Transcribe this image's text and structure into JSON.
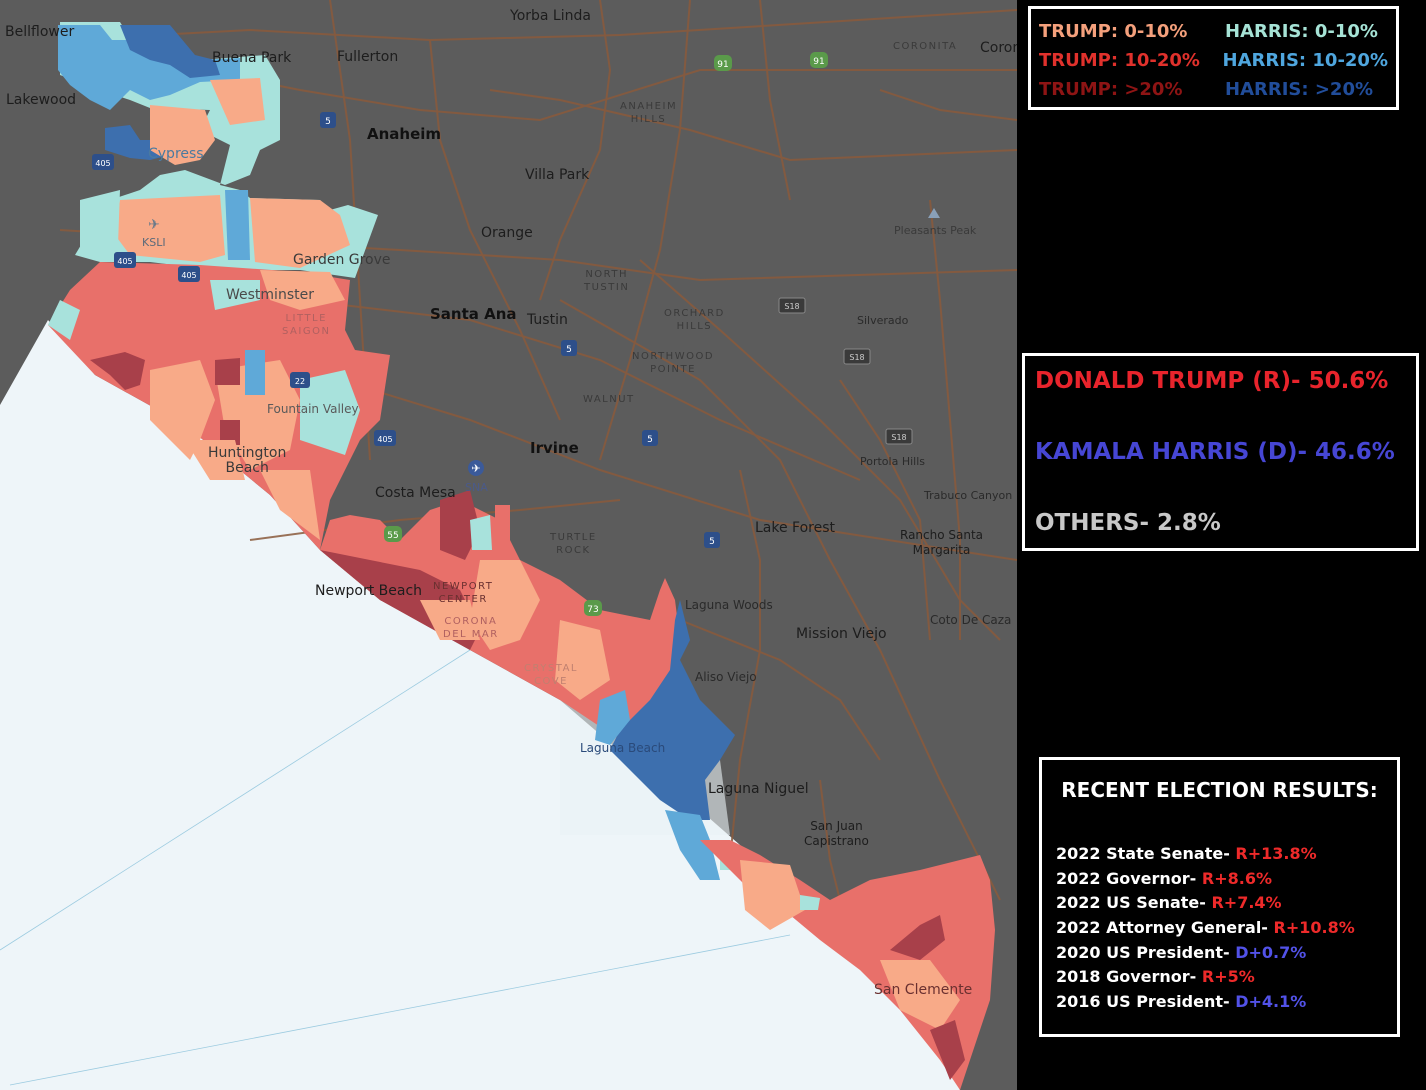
{
  "legend": {
    "trump_0_10": "TRUMP: 0-10%",
    "trump_10_20": "TRUMP: 10-20%",
    "trump_20": "TRUMP: >20%",
    "harris_0_10": "HARRIS: 0-10%",
    "harris_10_20": "HARRIS: 10-20%",
    "harris_20": "HARRIS: >20%"
  },
  "results": {
    "trump": "DONALD TRUMP (R)- 50.6%",
    "harris": "KAMALA HARRIS (D)- 46.6%",
    "others": "OTHERS- 2.8%"
  },
  "recent": {
    "title": "RECENT ELECTION RESULTS:",
    "items": [
      {
        "label": "2022 State Senate- ",
        "margin": "R+13.8%",
        "party": "R"
      },
      {
        "label": "2022 Governor- ",
        "margin": "R+8.6%",
        "party": "R"
      },
      {
        "label": "2022 US Senate- ",
        "margin": "R+7.4%",
        "party": "R"
      },
      {
        "label": "2022 Attorney General- ",
        "margin": "R+10.8%",
        "party": "R"
      },
      {
        "label": "2020 US President- ",
        "margin": "D+0.7%",
        "party": "D"
      },
      {
        "label": "2018 Governor- ",
        "margin": "R+5%",
        "party": "R"
      },
      {
        "label": "2016 US President- ",
        "margin": "D+4.1%",
        "party": "D"
      }
    ]
  },
  "places": {
    "bellflower": "Bellflower",
    "yorba_linda": "Yorba Linda",
    "buena_park": "Buena Park",
    "fullerton": "Fullerton",
    "corona": "CORONITA",
    "coron": "Coron",
    "lakewood": "Lakewood",
    "anaheim": "Anaheim",
    "anaheim_hills": "ANAHEIM\nHILLS",
    "cypress": "Cypress",
    "villa_park": "Villa Park",
    "ksli": "KSLI",
    "orange": "Orange",
    "pleasants_peak": "Pleasants Peak",
    "garden_grove": "Garden Grove",
    "north_tustin": "NORTH\nTUSTIN",
    "westminster": "Westminster",
    "little_saigon": "LITTLE\nSAIGON",
    "santa_ana": "Santa Ana",
    "tustin": "Tustin",
    "orchard_hills": "ORCHARD\nHILLS",
    "silverado": "Silverado",
    "northwood_pointe": "NORTHWOOD\nPOINTE",
    "walnut": "WALNUT",
    "fountain_valley": "Fountain Valley",
    "irvine": "Irvine",
    "huntington_beach": "Huntington\nBeach",
    "portola_hills": "Portola Hills",
    "costa_mesa": "Costa Mesa",
    "sna": "SNA",
    "trabuco_canyon": "Trabuco Canyon",
    "turtle_rock": "TURTLE\nROCK",
    "lake_forest": "Lake Forest",
    "rancho_santa_margarita": "Rancho Santa\nMargarita",
    "newport_beach": "Newport Beach",
    "newport_center": "NEWPORT\nCENTER",
    "laguna_woods": "Laguna Woods",
    "coto_de_caza": "Coto De Caza",
    "corona_del_mar": "CORONA\nDEL MAR",
    "mission_viejo": "Mission Viejo",
    "crystal_cove": "CRYSTAL\nCOVE",
    "aliso_viejo": "Aliso Viejo",
    "laguna_beach": "Laguna Beach",
    "laguna_niguel": "Laguna Niguel",
    "san_juan_capistrano": "San Juan\nCapistrano",
    "san_clemente": "San Clemente"
  },
  "route_shields": {
    "r91a": "91",
    "r91b": "91",
    "r5a": "5",
    "r5b": "5",
    "r5c": "5",
    "r5d": "5",
    "r405a": "405",
    "r405b": "405",
    "r405c": "405",
    "r405d": "405",
    "r22": "22",
    "r55": "55",
    "r73": "73",
    "s18a": "S18",
    "s18b": "S18",
    "s18c": "S18"
  },
  "colors": {
    "trump_0_10": "#F8AA88",
    "trump_10_20": "#E8706A",
    "trump_20": "#A8404A",
    "harris_0_10": "#A8E2DC",
    "harris_10_20": "#5FA9D8",
    "harris_20": "#3D6FAE",
    "ocean": "#EEF5F9",
    "land": "#5C5C5C",
    "road": "#8E5A3C",
    "legend_trump_0_10": "#F4A07C",
    "legend_trump_10_20": "#E0312C",
    "legend_trump_20": "#8E1414",
    "legend_harris_0_10": "#A6E3D6",
    "legend_harris_10_20": "#4FA6DE",
    "legend_harris_20": "#214D9A",
    "results_trump": "#E8242C",
    "results_harris": "#4646D4",
    "results_others": "#C8C8C8",
    "margin_r": "#EE2A2A",
    "margin_d": "#5252E8"
  }
}
